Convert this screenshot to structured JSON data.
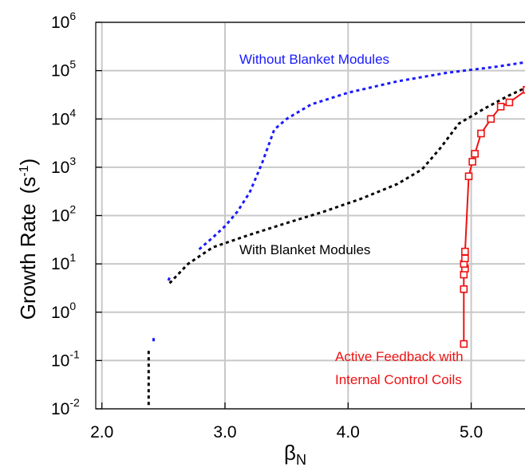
{
  "chart_data": {
    "type": "line",
    "title": "",
    "xlabel": "β",
    "xlabel_subscript": "N",
    "ylabel": "Growth Rate",
    "ylabel_units": "(s",
    "ylabel_units_exp": "-1",
    "ylabel_units_close": ")",
    "yscale": "log",
    "xlim": [
      1.95,
      5.45
    ],
    "ylim": [
      0.01,
      1000000
    ],
    "grid": true,
    "x_ticks": [
      {
        "value": 2.0,
        "label": "2.0"
      },
      {
        "value": 3.0,
        "label": "3.0"
      },
      {
        "value": 4.0,
        "label": "4.0"
      },
      {
        "value": 5.0,
        "label": "5.0"
      }
    ],
    "y_ticks": [
      {
        "value": 0.01,
        "base": "10",
        "exp": "-2"
      },
      {
        "value": 0.1,
        "base": "10",
        "exp": "-1"
      },
      {
        "value": 1,
        "base": "10",
        "exp": "0"
      },
      {
        "value": 10,
        "base": "10",
        "exp": "1"
      },
      {
        "value": 100,
        "base": "10",
        "exp": "2"
      },
      {
        "value": 1000,
        "base": "10",
        "exp": "3"
      },
      {
        "value": 10000,
        "base": "10",
        "exp": "4"
      },
      {
        "value": 100000,
        "base": "10",
        "exp": "5"
      },
      {
        "value": 1000000,
        "base": "10",
        "exp": "6"
      }
    ],
    "series": [
      {
        "name": "Without Blanket Modules",
        "color": "#1a1aff",
        "style": "dotted",
        "segments": [
          {
            "x": [
              2.42,
              2.42
            ],
            "y": [
              0.25,
              0.34
            ]
          },
          {
            "x": [
              2.54,
              2.56
            ],
            "y": [
              4.5,
              6.0
            ]
          },
          {
            "x": [
              2.79,
              2.9,
              3.0,
              3.1,
              3.2,
              3.3,
              3.4,
              3.5,
              3.7,
              4.0,
              4.4,
              4.8,
              5.2,
              5.45
            ],
            "y": [
              20,
              35,
              60,
              120,
              300,
              1200,
              6000,
              10000,
              20000,
              35000,
              60000,
              90000,
              120000,
              150000
            ]
          }
        ]
      },
      {
        "name": "With Blanket Modules",
        "color": "#000000",
        "style": "dotted",
        "segments": [
          {
            "x": [
              2.38,
              2.38
            ],
            "y": [
              0.012,
              0.18
            ]
          },
          {
            "x": [
              2.55,
              2.7,
              2.9,
              3.2,
              3.5,
              3.8,
              4.1,
              4.4,
              4.6,
              4.75,
              4.9,
              5.1,
              5.3,
              5.45
            ],
            "y": [
              4,
              10,
              22,
              40,
              70,
              120,
              220,
              450,
              900,
              2500,
              8000,
              16000,
              30000,
              45000
            ]
          }
        ]
      },
      {
        "name": "Active Feedback with Internal Control Coils",
        "color": "#ee1111",
        "style": "solid-square",
        "x": [
          4.94,
          4.94,
          4.94,
          4.95,
          4.94,
          4.95,
          4.95,
          4.98,
          5.01,
          5.03,
          5.08,
          5.16,
          5.24,
          5.31,
          5.45
        ],
        "y": [
          0.22,
          3,
          6,
          8,
          10,
          13,
          18,
          650,
          1300,
          1900,
          5000,
          10000,
          18000,
          22000,
          40000
        ]
      }
    ],
    "annotations": [
      {
        "text": "Without Blanket Modules",
        "color": "#1a1aff"
      },
      {
        "text": "With Blanket Modules",
        "color": "#000000"
      },
      {
        "text": "Active Feedback with",
        "color": "#ee1111"
      },
      {
        "text": "Internal Control Coils",
        "color": "#ee1111"
      }
    ]
  }
}
